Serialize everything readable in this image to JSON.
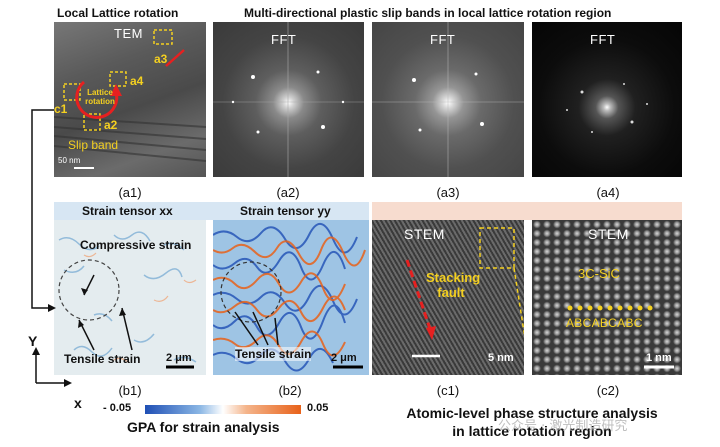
{
  "headers": {
    "local_rotation": "Local Lattice rotation",
    "slip_bands": "Multi-directional plastic slip bands in local lattice rotation region"
  },
  "top_panels": {
    "a1": {
      "label": "TEM",
      "caption": "(a1)",
      "scale": "50 nm",
      "annotations": [
        "a3",
        "a4",
        "c1",
        "a2",
        "Lattice rotation",
        "Slip band"
      ]
    },
    "a2": {
      "label": "FFT",
      "caption": "(a2)"
    },
    "a3": {
      "label": "FFT",
      "caption": "(a3)"
    },
    "a4": {
      "label": "FFT",
      "caption": "(a4)"
    }
  },
  "strain_panels": {
    "b1": {
      "title": "Strain tensor xx",
      "caption": "(b1)",
      "compressive": "Compressive strain",
      "tensile": "Tensile strain",
      "scale": "2 μm"
    },
    "b2": {
      "title": "Strain tensor yy",
      "caption": "(b2)",
      "tensile": "Tensile strain",
      "scale": "2 μm"
    }
  },
  "stem_panels": {
    "c1": {
      "label": "STEM",
      "caption": "(c1)",
      "annotation": "Stacking fault",
      "scale": "5 nm"
    },
    "c2": {
      "label": "STEM",
      "caption": "(c2)",
      "phase": "3C-SiC",
      "sequence": "ABCABCABC",
      "scale": "1 nm"
    }
  },
  "axes": {
    "y": "Y",
    "x": "x"
  },
  "colorbar": {
    "min": "- 0.05",
    "max": "0.05",
    "label": "GPA for strain analysis",
    "colors": [
      "#1f4fb5",
      "#ffffff",
      "#e8621a"
    ]
  },
  "footer": {
    "line1": "Atomic-level phase structure analysis",
    "line2": "in lattice rotation region"
  },
  "watermark": "公众号 · 激光制造研究"
}
